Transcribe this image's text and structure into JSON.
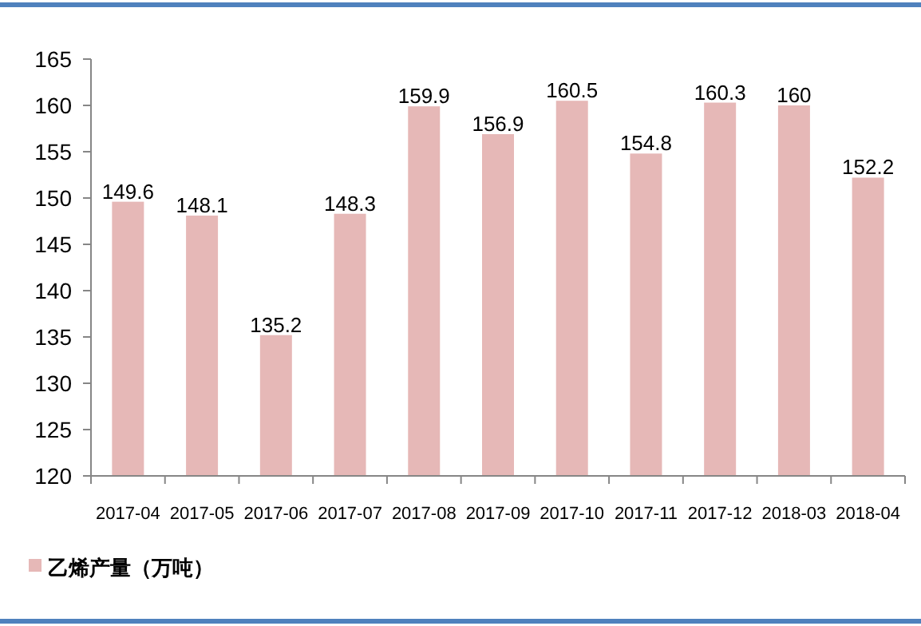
{
  "chart_data": {
    "type": "bar",
    "categories": [
      "2017-04",
      "2017-05",
      "2017-06",
      "2017-07",
      "2017-08",
      "2017-09",
      "2017-10",
      "2017-11",
      "2017-12",
      "2018-03",
      "2018-04"
    ],
    "series": [
      {
        "name": "乙烯产量（万吨）",
        "color": "#e6b8b7",
        "values": [
          149.6,
          148.1,
          135.2,
          148.3,
          159.9,
          156.9,
          160.5,
          154.8,
          160.3,
          160,
          152.2
        ]
      }
    ],
    "ylim": [
      120,
      165
    ],
    "yticks": [
      120,
      125,
      130,
      135,
      140,
      145,
      150,
      155,
      160,
      165
    ],
    "data_labels": true,
    "legend": "bottom",
    "grid": false
  }
}
